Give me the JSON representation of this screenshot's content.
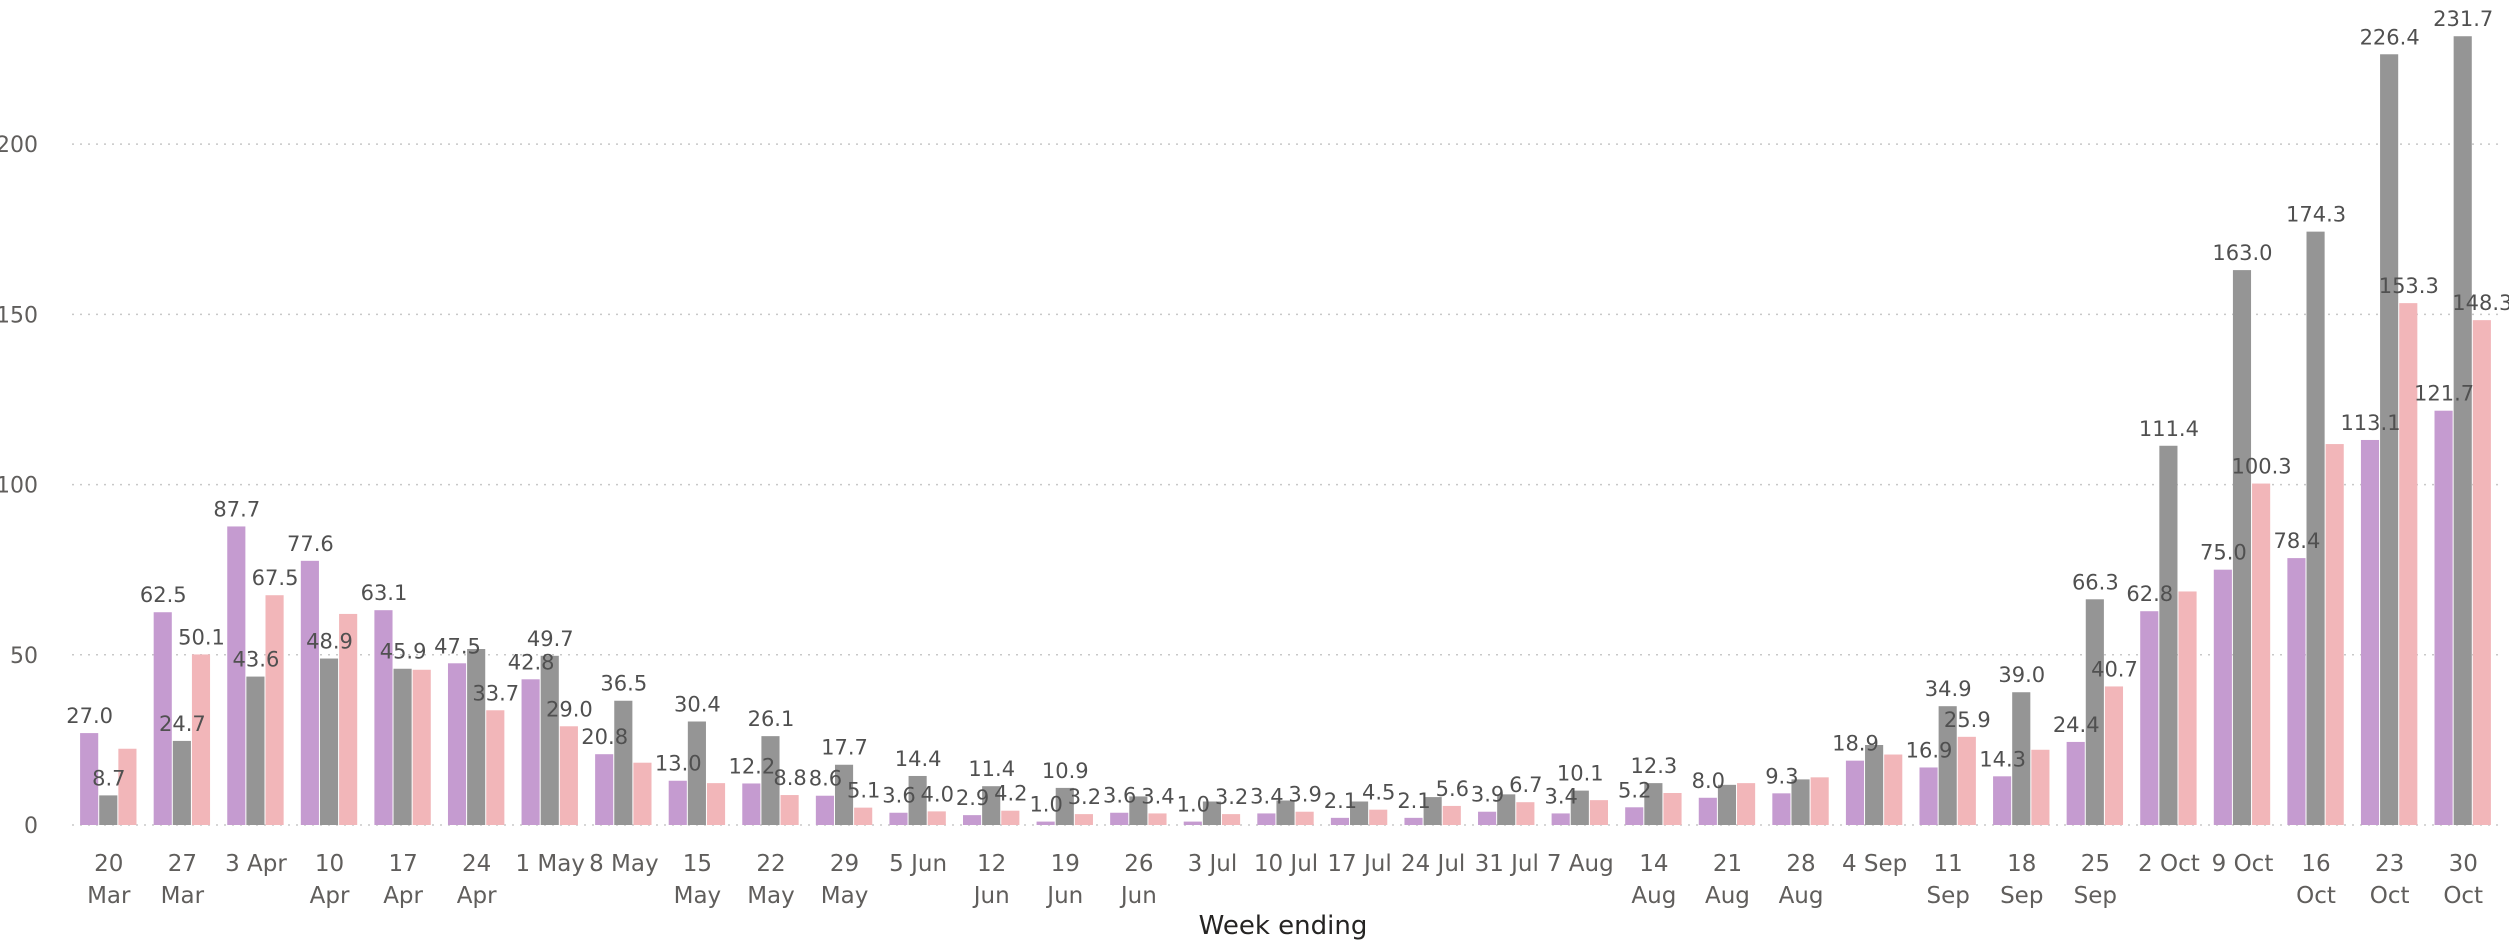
{
  "chart_data": {
    "type": "bar",
    "xlabel": "Week ending",
    "ylabel": "",
    "ylim": [
      0,
      235
    ],
    "yticks": [
      0,
      50,
      100,
      150,
      200
    ],
    "grid": true,
    "legend": "none",
    "categories": [
      [
        "20",
        "Mar"
      ],
      [
        "27",
        "Mar"
      ],
      [
        "3 Apr"
      ],
      [
        "10",
        "Apr"
      ],
      [
        "17",
        "Apr"
      ],
      [
        "24",
        "Apr"
      ],
      [
        "1 May"
      ],
      [
        "8 May"
      ],
      [
        "15",
        "May"
      ],
      [
        "22",
        "May"
      ],
      [
        "29",
        "May"
      ],
      [
        "5 Jun"
      ],
      [
        "12",
        "Jun"
      ],
      [
        "19",
        "Jun"
      ],
      [
        "26",
        "Jun"
      ],
      [
        "3 Jul"
      ],
      [
        "10 Jul"
      ],
      [
        "17 Jul"
      ],
      [
        "24 Jul"
      ],
      [
        "31 Jul"
      ],
      [
        "7 Aug"
      ],
      [
        "14",
        "Aug"
      ],
      [
        "21",
        "Aug"
      ],
      [
        "28",
        "Aug"
      ],
      [
        "4 Sep"
      ],
      [
        "11",
        "Sep"
      ],
      [
        "18",
        "Sep"
      ],
      [
        "25",
        "Sep"
      ],
      [
        "2 Oct"
      ],
      [
        "9 Oct"
      ],
      [
        "16",
        "Oct"
      ],
      [
        "23",
        "Oct"
      ],
      [
        "30",
        "Oct"
      ]
    ],
    "series": [
      {
        "color": "#c59bd0",
        "values": [
          27.0,
          62.5,
          87.7,
          77.6,
          63.1,
          47.5,
          42.8,
          20.8,
          13.0,
          12.2,
          8.6,
          3.6,
          2.9,
          1.0,
          3.6,
          1.0,
          3.4,
          2.1,
          2.1,
          3.9,
          3.4,
          5.2,
          8.0,
          9.3,
          18.9,
          16.9,
          14.3,
          24.4,
          62.8,
          75.0,
          78.4,
          113.1,
          121.7
        ],
        "labels": [
          "27.0",
          "62.5",
          "87.7",
          "77.6",
          "63.1",
          "47.5",
          "42.8",
          "20.8",
          "13.0",
          "12.2",
          "8.6",
          "3.6",
          "2.9",
          "1.0",
          "3.6",
          "1.0",
          "3.4",
          "2.1",
          "2.1",
          "3.9",
          "3.4",
          "5.2",
          "8.0",
          "9.3",
          "18.9",
          "16.9",
          "14.3",
          "24.4",
          "62.8",
          "75.0",
          "78.4",
          "113.1",
          "121.7"
        ]
      },
      {
        "color": "#959595",
        "values": [
          8.7,
          24.7,
          43.6,
          48.9,
          45.9,
          51.7,
          49.7,
          36.5,
          30.4,
          26.1,
          17.7,
          14.4,
          11.4,
          10.9,
          8.4,
          6.9,
          7.2,
          6.9,
          8.2,
          9.0,
          10.1,
          12.3,
          11.8,
          13.4,
          23.5,
          34.9,
          39.0,
          66.3,
          111.4,
          163.0,
          174.3,
          226.4,
          231.7
        ],
        "labels": [
          "8.7",
          "24.7",
          "43.6",
          "48.9",
          "45.9",
          "",
          "49.7",
          "36.5",
          "30.4",
          "26.1",
          "17.7",
          "14.4",
          "11.4",
          "10.9",
          "",
          "",
          "",
          "",
          "",
          "",
          "10.1",
          "12.3",
          "",
          "",
          "",
          "34.9",
          "39.0",
          "66.3",
          "111.4",
          "163.0",
          "174.3",
          "226.4",
          "231.7"
        ]
      },
      {
        "color": "#f2b6b9",
        "values": [
          22.4,
          50.1,
          67.5,
          62.0,
          45.6,
          33.7,
          29.0,
          18.3,
          12.3,
          8.8,
          5.1,
          4.0,
          4.2,
          3.2,
          3.4,
          3.2,
          3.9,
          4.5,
          5.6,
          6.7,
          7.3,
          9.4,
          12.3,
          14.0,
          20.7,
          25.9,
          22.1,
          40.7,
          68.6,
          100.3,
          111.9,
          153.3,
          148.3
        ],
        "labels": [
          "",
          "50.1",
          "67.5",
          "",
          "",
          "33.7",
          "29.0",
          "",
          "",
          "8.8",
          "5.1",
          "4.0",
          "4.2",
          "3.2",
          "3.4",
          "3.2",
          "3.9",
          "4.5",
          "5.6",
          "6.7",
          "",
          "",
          "",
          "",
          "",
          "25.9",
          "",
          "40.7",
          "",
          "100.3",
          "",
          "153.3",
          "148.3"
        ]
      }
    ]
  }
}
